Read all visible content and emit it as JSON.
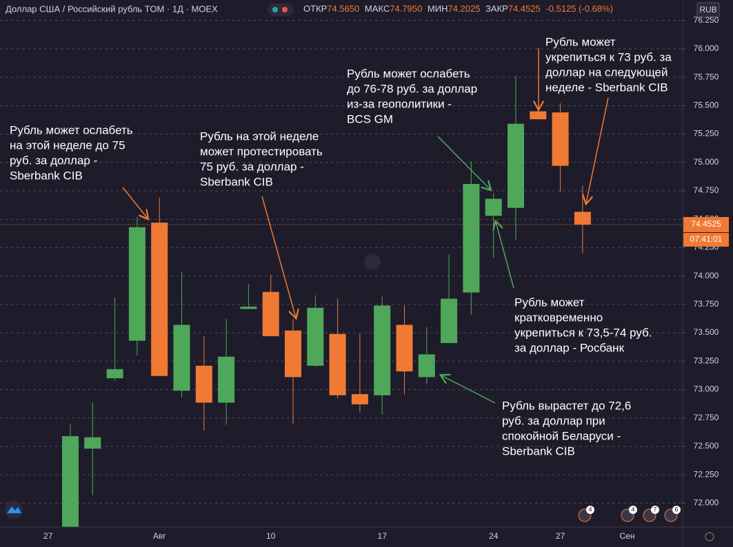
{
  "chart_data": {
    "type": "candlestick",
    "header": {
      "symbol": "Доллар США / Российский рубль TOM · 1Д · MOEX",
      "open_label": "ОТКР",
      "open": "74.5650",
      "high_label": "МАКС",
      "high": "74.7950",
      "low_label": "МИН",
      "low": "74.2025",
      "close_label": "ЗАКР",
      "close": "74.4525",
      "change": "-0.5125 (-0.68%)"
    },
    "currency": "RUB",
    "categories": [
      null,
      "27",
      null,
      null,
      null,
      null,
      "Авг",
      null,
      null,
      null,
      null,
      "10",
      null,
      null,
      null,
      null,
      "17",
      null,
      null,
      null,
      null,
      "24",
      null,
      null,
      "27",
      null,
      null,
      "Сен"
    ],
    "series": [
      {
        "name": "open",
        "values": [
          null,
          null,
          71.75,
          72.48,
          73.1,
          73.43,
          74.47,
          72.99,
          73.21,
          72.885,
          73.71,
          73.86,
          73.52,
          73.21,
          73.49,
          72.96,
          72.95,
          73.57,
          73.11,
          73.41,
          73.855,
          74.53,
          74.6,
          75.45,
          75.44,
          74.565,
          null,
          null
        ]
      },
      {
        "name": "high",
        "values": [
          null,
          null,
          72.7,
          72.89,
          73.81,
          74.52,
          74.69,
          74.04,
          73.47,
          73.62,
          73.93,
          74.01,
          73.62,
          73.83,
          73.8,
          73.49,
          73.82,
          73.74,
          73.55,
          74.19,
          75.01,
          74.73,
          75.76,
          75.48,
          75.52,
          74.795,
          null,
          null
        ]
      },
      {
        "name": "low",
        "values": [
          null,
          null,
          71.7,
          72.07,
          73.08,
          73.3,
          73.12,
          72.93,
          72.64,
          72.69,
          73.71,
          73.47,
          72.7,
          73.2,
          72.92,
          72.8,
          72.78,
          72.96,
          73.05,
          73.41,
          73.66,
          74.16,
          74.32,
          75.38,
          74.74,
          74.2025,
          null,
          null
        ]
      },
      {
        "name": "close",
        "values": [
          null,
          null,
          72.59,
          72.58,
          73.18,
          74.43,
          73.12,
          73.57,
          72.885,
          73.29,
          73.73,
          73.47,
          73.11,
          73.72,
          72.95,
          72.87,
          73.74,
          73.16,
          73.31,
          73.8,
          74.81,
          74.68,
          75.34,
          75.38,
          74.97,
          74.4525,
          null,
          null
        ]
      }
    ],
    "up_color": "#4fa85a",
    "down_color": "#f07a33",
    "ylim": [
      71.79,
      76.43
    ],
    "yticks": [
      {
        "value": 72,
        "label": "72.000"
      },
      {
        "value": 72.25,
        "label": "72.250"
      },
      {
        "value": 72.5,
        "label": "72.500"
      },
      {
        "value": 72.75,
        "label": "72.750"
      },
      {
        "value": 73,
        "label": "73.000"
      },
      {
        "value": 73.25,
        "label": "73.250"
      },
      {
        "value": 73.5,
        "label": "73.500"
      },
      {
        "value": 73.75,
        "label": "73.750"
      },
      {
        "value": 74,
        "label": "74.000"
      },
      {
        "value": 74.25,
        "label": "74.250"
      },
      {
        "value": 74.5,
        "label": "74.500"
      },
      {
        "value": 74.75,
        "label": "74.750"
      },
      {
        "value": 75,
        "label": "75.000"
      },
      {
        "value": 75.25,
        "label": "75.250"
      },
      {
        "value": 75.5,
        "label": "75.500"
      },
      {
        "value": 75.75,
        "label": "75.750"
      },
      {
        "value": 76,
        "label": "76.000"
      },
      {
        "value": 76.25,
        "label": "76.250"
      }
    ],
    "grid": true,
    "last_price": 74.4525,
    "countdown": "07:41:01",
    "events": [
      4,
      4,
      7,
      6
    ],
    "annotations": [
      {
        "lines": [
          "Рубль может ослабеть",
          "на этой неделе до 75",
          "руб. за доллар -",
          "Sberbank CIB"
        ]
      },
      {
        "lines": [
          "Рубль на этой неделе",
          "может протестировать",
          "75 руб. за доллар -",
          "Sberbank CIB"
        ]
      },
      {
        "lines": [
          "Рубль может ослабеть",
          "до 76-78 руб. за доллар",
          "из-за геополитики -",
          "BCS GM"
        ]
      },
      {
        "lines": [
          "Рубль может",
          "укрепиться к 73 руб. за",
          "доллар на следующей",
          "неделе - Sberbank CIB"
        ]
      },
      {
        "lines": [
          "Рубль может",
          "кратковременно",
          "укрепиться к 73,5-74 руб.",
          "за доллар - Росбанк"
        ]
      },
      {
        "lines": [
          "Рубль вырастет до 72,6",
          "руб. за доллар при",
          "спокойной Беларуси -",
          "Sberbank CIB"
        ]
      }
    ]
  }
}
